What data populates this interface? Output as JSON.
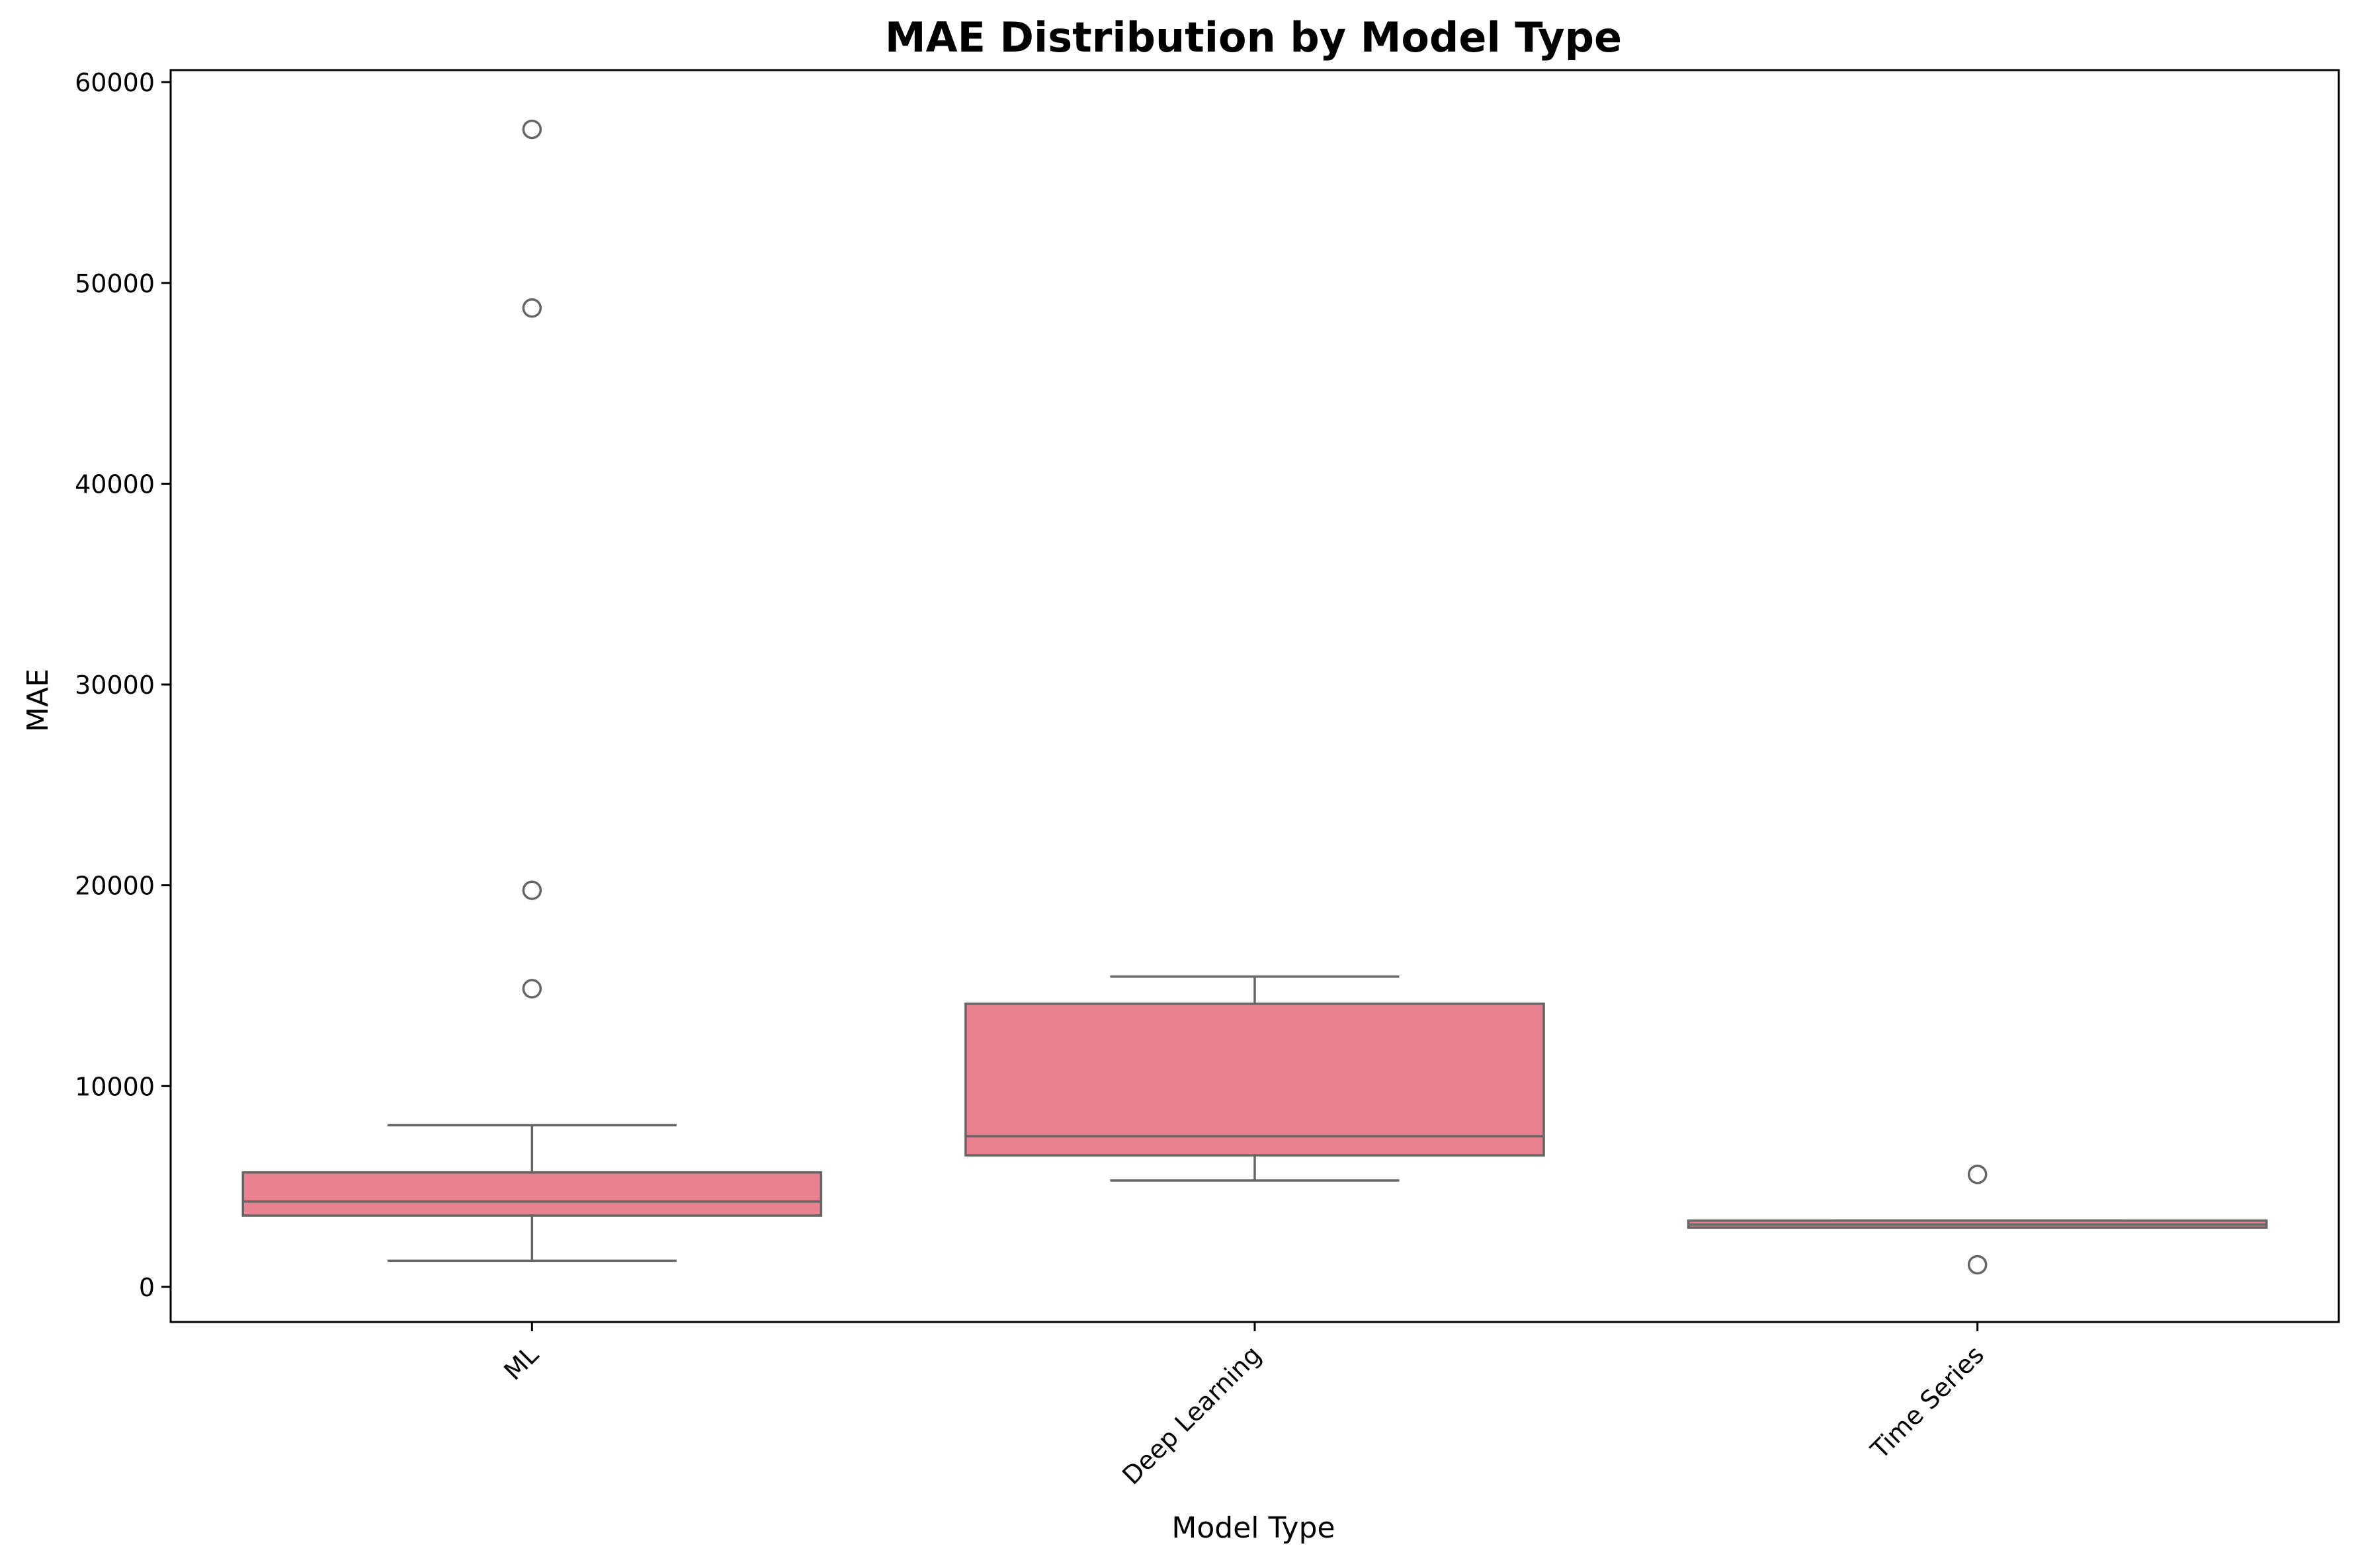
{
  "chart_data": {
    "type": "box",
    "title": "MAE Distribution by Model Type",
    "xlabel": "Model Type",
    "ylabel": "MAE",
    "categories": [
      "ML",
      "Deep Learning",
      "Time Series"
    ],
    "ylim": [
      -1750,
      60600
    ],
    "yticks": [
      0,
      10000,
      20000,
      30000,
      40000,
      50000,
      60000
    ],
    "ytick_labels": [
      "0",
      "10000",
      "20000",
      "30000",
      "40000",
      "50000",
      "60000"
    ],
    "grid": false,
    "legend": "none",
    "box_color": "#e8808f",
    "line_color": "#666666",
    "boxes": [
      {
        "category": "ML",
        "whisker_low": 1300,
        "q1": 3550,
        "median": 4250,
        "q3": 5700,
        "whisker_high": 8050,
        "outliers": [
          14850,
          19750,
          48750,
          57650
        ]
      },
      {
        "category": "Deep Learning",
        "whisker_low": 5300,
        "q1": 6550,
        "median": 7500,
        "q3": 14100,
        "whisker_high": 15450,
        "outliers": []
      },
      {
        "category": "Time Series",
        "whisker_low": 2950,
        "q1": 2950,
        "median": 3100,
        "q3": 3300,
        "whisker_high": 3300,
        "outliers": [
          1100,
          5600
        ]
      }
    ]
  }
}
